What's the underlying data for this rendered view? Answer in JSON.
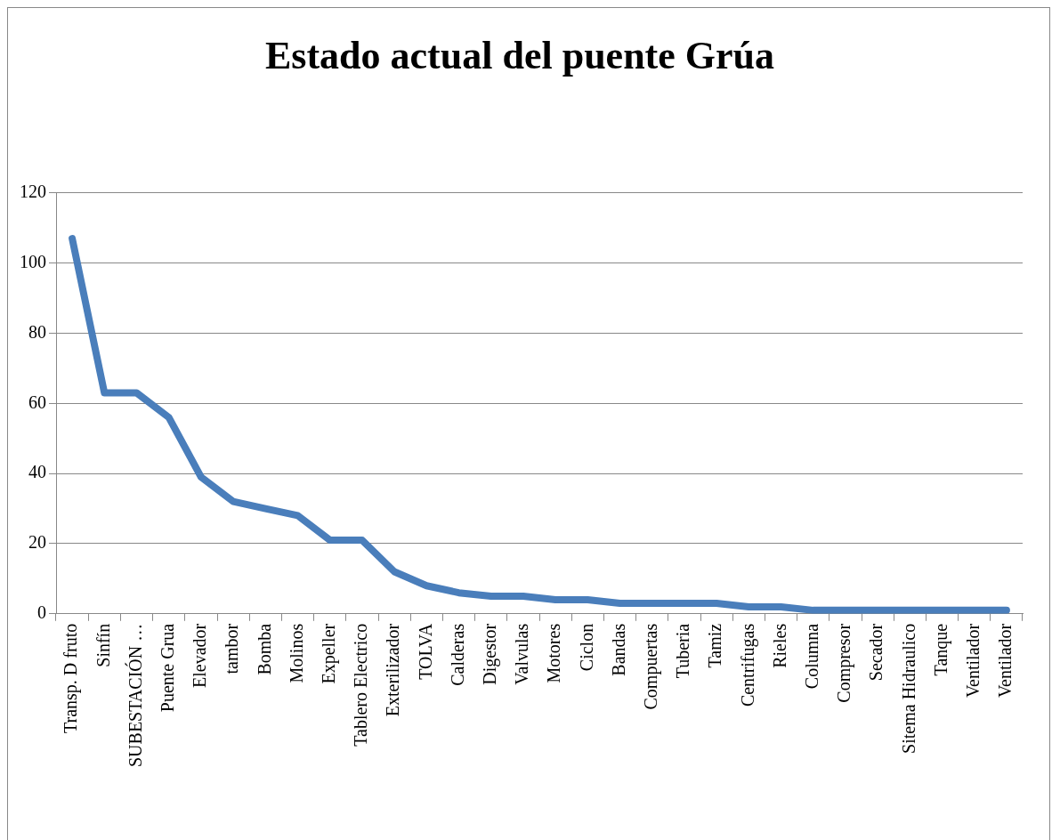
{
  "chart_data": {
    "type": "line",
    "title": "Estado actual del puente Grúa",
    "categories": [
      "Transp. D fruto",
      "Sinfín",
      "SUBESTACIÓN …",
      "Puente Grua",
      "Elevador",
      "tambor",
      "Bomba",
      "Molinos",
      "Expeller",
      "Tablero Electrico",
      "Exterilizador",
      "TOLVA",
      "Calderas",
      "Digestor",
      "Valvulas",
      "Motores",
      "Ciclon",
      "Bandas",
      "Compuertas",
      "Tuberia",
      "Tamiz",
      "Centrifugas",
      "Rieles",
      "Columna",
      "Compresor",
      "Secador",
      "Sitema Hidraulico",
      "Tanque",
      "Ventilador",
      "Ventilador"
    ],
    "series": [
      {
        "color": "#4a7ebb",
        "values": [
          107,
          63,
          63,
          56,
          39,
          32,
          30,
          28,
          21,
          21,
          12,
          8,
          6,
          5,
          5,
          4,
          4,
          3,
          3,
          3,
          3,
          2,
          2,
          1,
          1,
          1,
          1,
          1,
          1,
          1
        ]
      }
    ],
    "ylim": [
      0,
      120
    ],
    "yticks": [
      0,
      20,
      40,
      60,
      80,
      100,
      120
    ],
    "grid": "y",
    "legend": false,
    "marker": "none",
    "line_style": "solid"
  }
}
